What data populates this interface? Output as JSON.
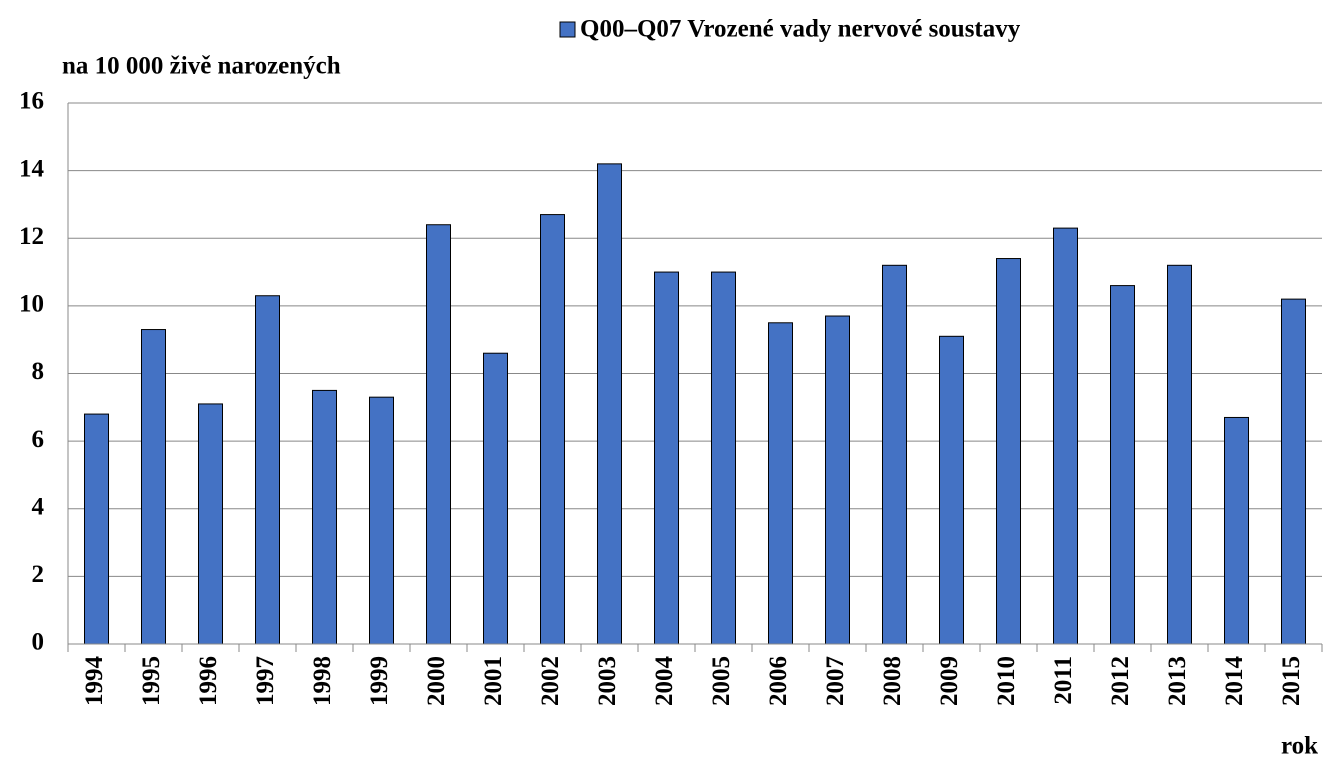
{
  "chart_data": {
    "type": "bar",
    "y_label": "na 10 000 živě narozených",
    "x_label": "rok",
    "categories": [
      "1994",
      "1995",
      "1996",
      "1997",
      "1998",
      "1999",
      "2000",
      "2001",
      "2002",
      "2003",
      "2004",
      "2005",
      "2006",
      "2007",
      "2008",
      "2009",
      "2010",
      "2011",
      "2012",
      "2013",
      "2014",
      "2015"
    ],
    "series": [
      {
        "name": "Q00–Q07 Vrozené vady nervové soustavy",
        "color": "#4472c4",
        "values": [
          6.8,
          9.3,
          7.1,
          10.3,
          7.5,
          7.3,
          12.4,
          8.6,
          12.7,
          14.2,
          11.0,
          11.0,
          9.5,
          9.7,
          11.2,
          9.1,
          11.4,
          12.3,
          10.6,
          11.2,
          6.7,
          10.2
        ]
      }
    ],
    "ylim": [
      0,
      16
    ],
    "yticks": [
      0,
      2,
      4,
      6,
      8,
      10,
      12,
      14,
      16
    ],
    "grid": true,
    "legend": "top"
  }
}
